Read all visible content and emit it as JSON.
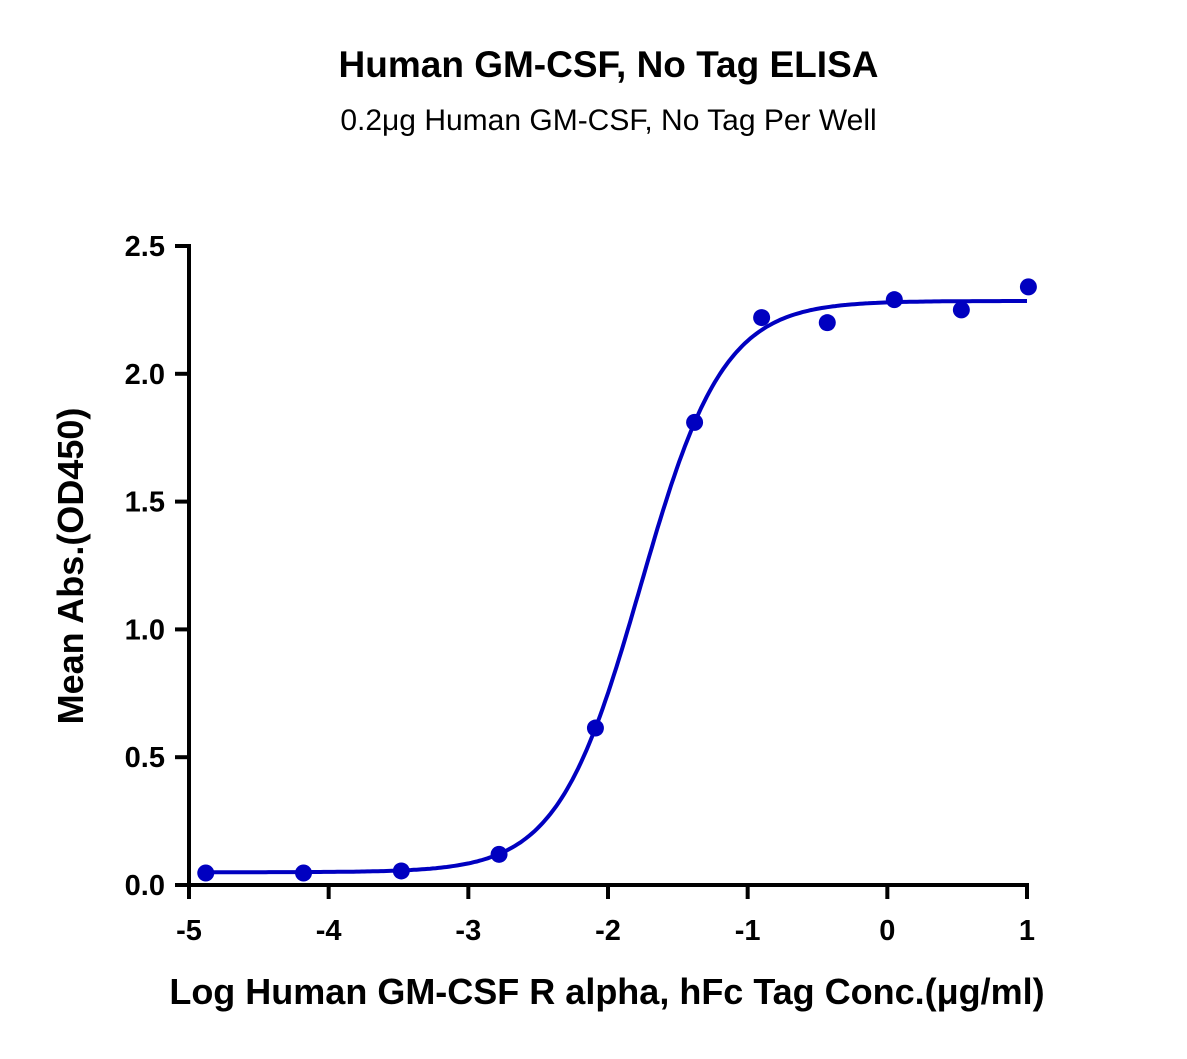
{
  "chart_data": {
    "type": "scatter",
    "title": "Human GM-CSF, No Tag ELISA",
    "subtitle": "0.2μg Human GM-CSF, No Tag Per Well",
    "xlabel": "Log Human GM-CSF R alpha, hFc Tag Conc.(μg/ml)",
    "ylabel": "Mean Abs.(OD450)",
    "xlim": [
      -5,
      1
    ],
    "ylim": [
      0,
      2.5
    ],
    "xticks": [
      "-5",
      "-4",
      "-3",
      "-2",
      "-1",
      "0",
      "1"
    ],
    "yticks": [
      "0.0",
      "0.5",
      "1.0",
      "1.5",
      "2.0",
      "2.5"
    ],
    "grid": false,
    "color": "#0000c0",
    "points": {
      "x": [
        -4.88,
        -4.18,
        -3.48,
        -2.78,
        -2.09,
        -1.38,
        -0.9,
        -0.43,
        0.05,
        0.53,
        1.01
      ],
      "y": [
        0.047,
        0.047,
        0.055,
        0.12,
        0.614,
        1.81,
        2.22,
        2.2,
        2.29,
        2.25,
        2.34
      ]
    },
    "fit": {
      "model": "4PL",
      "bottom": 0.05,
      "top": 2.285,
      "logEC50": -1.768,
      "hill": 1.465,
      "xrange": [
        -4.88,
        1.0
      ]
    }
  }
}
